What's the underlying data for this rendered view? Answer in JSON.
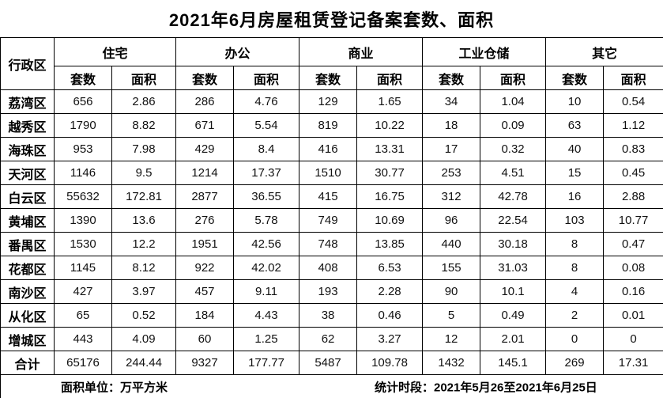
{
  "title": "2021年6月房屋租赁登记备案套数、面积",
  "table": {
    "corner_header": "行政区",
    "group_headers": [
      "住宅",
      "办公",
      "商业",
      "工业仓储",
      "其它"
    ],
    "sub_headers": [
      "套数",
      "面积"
    ],
    "rows": [
      {
        "district": "荔湾区",
        "values": [
          "656",
          "2.86",
          "286",
          "4.76",
          "129",
          "1.65",
          "34",
          "1.04",
          "10",
          "0.54"
        ]
      },
      {
        "district": "越秀区",
        "values": [
          "1790",
          "8.82",
          "671",
          "5.54",
          "819",
          "10.22",
          "18",
          "0.09",
          "63",
          "1.12"
        ]
      },
      {
        "district": "海珠区",
        "values": [
          "953",
          "7.98",
          "429",
          "8.4",
          "416",
          "13.31",
          "17",
          "0.32",
          "40",
          "0.83"
        ]
      },
      {
        "district": "天河区",
        "values": [
          "1146",
          "9.5",
          "1214",
          "17.37",
          "1510",
          "30.77",
          "253",
          "4.51",
          "15",
          "0.45"
        ]
      },
      {
        "district": "白云区",
        "values": [
          "55632",
          "172.81",
          "2877",
          "36.55",
          "415",
          "16.75",
          "312",
          "42.78",
          "16",
          "2.88"
        ]
      },
      {
        "district": "黄埔区",
        "values": [
          "1390",
          "13.6",
          "276",
          "5.78",
          "749",
          "10.69",
          "96",
          "22.54",
          "103",
          "10.77"
        ]
      },
      {
        "district": "番禺区",
        "values": [
          "1530",
          "12.2",
          "1951",
          "42.56",
          "748",
          "13.85",
          "440",
          "30.18",
          "8",
          "0.47"
        ]
      },
      {
        "district": "花都区",
        "values": [
          "1145",
          "8.12",
          "922",
          "42.02",
          "408",
          "6.53",
          "155",
          "31.03",
          "8",
          "0.08"
        ]
      },
      {
        "district": "南沙区",
        "values": [
          "427",
          "3.97",
          "457",
          "9.11",
          "193",
          "2.28",
          "90",
          "10.1",
          "4",
          "0.16"
        ]
      },
      {
        "district": "从化区",
        "values": [
          "65",
          "0.52",
          "184",
          "4.43",
          "38",
          "0.46",
          "5",
          "0.49",
          "2",
          "0.01"
        ]
      },
      {
        "district": "增城区",
        "values": [
          "443",
          "4.09",
          "60",
          "1.25",
          "62",
          "3.27",
          "12",
          "2.01",
          "0",
          "0"
        ]
      },
      {
        "district": "合计",
        "values": [
          "65176",
          "244.44",
          "9327",
          "177.77",
          "5487",
          "109.78",
          "1432",
          "145.1",
          "269",
          "17.31"
        ]
      }
    ],
    "footer": {
      "unit_note": "面积单位：万平方米",
      "period_note": "统计时段：2021年5月26至2021年6月25日"
    }
  }
}
